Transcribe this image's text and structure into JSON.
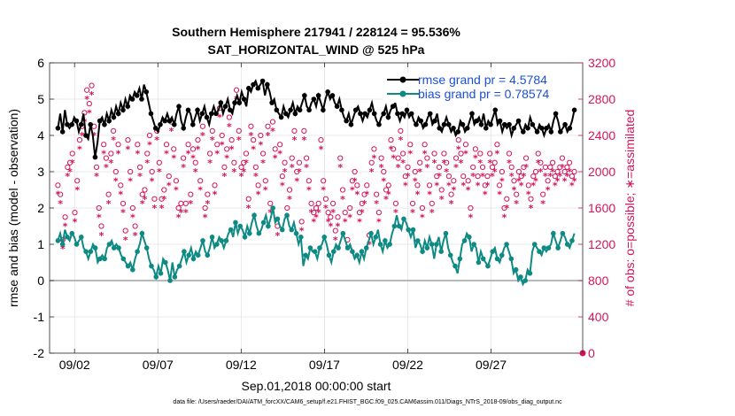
{
  "colors": {
    "rmse": "#000000",
    "bias": "#0e8a84",
    "obs": "#d6145a",
    "grid": "#e3e3e3",
    "legend_text": "#1a4fd8",
    "zero_line": "#a0a0a0"
  },
  "chart_data": {
    "type": "line",
    "title_line1": "Southern Hemisphere 217941 / 228124 = 95.536%",
    "title_line2": "SAT_HORIZONTAL_WIND @ 525 hPa",
    "xlabel": "Sep.01,2018 00:00:00 start",
    "ylabel_left": "rmse and bias (model - observation)",
    "ylabel_right": "# of obs: o=possible; ∗=assimilated",
    "xlim": [
      0.5,
      32.5
    ],
    "ylim_left": [
      -2,
      6
    ],
    "ylim_right": [
      0,
      3200
    ],
    "x_ticks": [
      2,
      7,
      12,
      17,
      22,
      27
    ],
    "x_tick_labels": [
      "09/02",
      "09/07",
      "09/12",
      "09/17",
      "09/22",
      "09/27"
    ],
    "y_left_ticks": [
      -2,
      -1,
      0,
      1,
      2,
      3,
      4,
      5,
      6
    ],
    "y_right_ticks": [
      0,
      400,
      800,
      1200,
      1600,
      2000,
      2400,
      2800,
      3200
    ],
    "legend": [
      "rmse grand pr = 4.5784",
      "bias grand pr = 0.78574"
    ],
    "series": [
      {
        "name": "rmse",
        "values": [
          4.2,
          4.6,
          4.1,
          4.7,
          4.3,
          4.2,
          4.3,
          4.5,
          4.4,
          4.1,
          4.3,
          4.6,
          4.0,
          3.9,
          4.3,
          4.0,
          3.4,
          3.8,
          4.4,
          4.5,
          4.3,
          4.6,
          4.4,
          4.7,
          4.5,
          4.8,
          4.6,
          4.9,
          4.7,
          5.0,
          4.8,
          5.1,
          5.0,
          5.2,
          5.1,
          5.3,
          5.0,
          5.4,
          5.2,
          4.9,
          4.6,
          4.4,
          4.2,
          4.1,
          4.3,
          4.5,
          4.4,
          4.6,
          4.4,
          4.5,
          4.3,
          4.6,
          4.8,
          4.4,
          4.2,
          4.5,
          4.7,
          4.6,
          4.3,
          4.5,
          4.7,
          4.4,
          4.6,
          4.8,
          4.5,
          4.3,
          4.6,
          4.8,
          4.6,
          4.7,
          4.9,
          4.6,
          4.8,
          5.0,
          4.7,
          4.6,
          4.9,
          5.1,
          4.9,
          5.2,
          5.0,
          4.8,
          5.3,
          5.2,
          5.4,
          5.5,
          5.3,
          5.4,
          5.5,
          5.1,
          5.4,
          5.2,
          4.9,
          5.0,
          4.7,
          4.6,
          4.5,
          4.8,
          4.6,
          4.5,
          4.7,
          4.9,
          4.6,
          4.8,
          4.7,
          4.9,
          5.1,
          4.8,
          4.7,
          4.9,
          5.0,
          4.8,
          5.1,
          4.9,
          4.7,
          5.0,
          5.2,
          5.0,
          5.1,
          4.9,
          4.8,
          5.0,
          4.7,
          4.5,
          4.4,
          4.6,
          4.3,
          4.5,
          4.7,
          4.8,
          4.6,
          4.4,
          4.6,
          4.5,
          4.7,
          4.9,
          4.6,
          4.4,
          4.3,
          4.5,
          4.6,
          4.8,
          4.5,
          4.7,
          4.8,
          4.9,
          4.6,
          4.4,
          4.6,
          4.5,
          4.7,
          4.5,
          4.6,
          4.4,
          4.3,
          4.5,
          4.4,
          4.2,
          4.3,
          4.5,
          4.6,
          4.3,
          4.4,
          4.6,
          4.2,
          4.1,
          4.3,
          4.5,
          4.3,
          4.1,
          4.2,
          4.0,
          4.1,
          4.4,
          4.3,
          4.1,
          4.2,
          4.4,
          4.6,
          4.3,
          4.4,
          4.5,
          4.3,
          4.6,
          4.2,
          4.4,
          4.3,
          4.5,
          4.7,
          4.3,
          4.4,
          4.1,
          4.3,
          4.2,
          4.3,
          4.0,
          4.2,
          4.3,
          4.4,
          4.2,
          4.1,
          4.3,
          4.2,
          4.5,
          4.3,
          4.2,
          4.1,
          4.3,
          4.2,
          4.0,
          4.2,
          4.3,
          4.1,
          4.4,
          4.6,
          4.4,
          4.1,
          4.2,
          4.3,
          4.1,
          4.2,
          4.4,
          4.7
        ]
      },
      {
        "name": "bias",
        "values": [
          1.1,
          1.3,
          1.0,
          1.4,
          1.2,
          1.1,
          1.3,
          1.2,
          1.0,
          1.1,
          1.2,
          0.9,
          0.8,
          0.6,
          0.8,
          1.0,
          0.9,
          0.5,
          0.6,
          0.7,
          0.6,
          0.9,
          1.0,
          1.1,
          0.9,
          1.0,
          0.9,
          0.7,
          0.6,
          0.5,
          0.4,
          0.5,
          0.3,
          0.6,
          0.8,
          1.0,
          1.3,
          1.1,
          0.9,
          0.6,
          0.4,
          0.3,
          0.1,
          0.4,
          0.2,
          0.6,
          0.5,
          0.3,
          0.0,
          0.5,
          0.1,
          0.3,
          0.4,
          0.6,
          0.8,
          0.5,
          0.7,
          0.9,
          0.6,
          0.8,
          0.7,
          0.9,
          1.1,
          0.8,
          0.7,
          0.9,
          1.2,
          0.9,
          1.0,
          1.2,
          1.1,
          0.9,
          1.1,
          1.3,
          1.4,
          1.2,
          1.6,
          1.3,
          1.5,
          1.4,
          1.2,
          1.5,
          1.3,
          1.6,
          1.8,
          1.5,
          1.3,
          1.4,
          1.6,
          1.8,
          1.5,
          1.7,
          2.0,
          1.6,
          1.7,
          1.5,
          1.4,
          1.7,
          1.8,
          1.5,
          1.4,
          1.6,
          1.3,
          1.0,
          1.2,
          0.4,
          0.7,
          0.6,
          0.9,
          0.8,
          0.8,
          0.6,
          0.9,
          1.0,
          1.2,
          1.0,
          0.7,
          0.5,
          0.8,
          1.0,
          0.9,
          1.1,
          1.3,
          1.1,
          0.9,
          1.0,
          0.8,
          0.6,
          0.7,
          0.5,
          0.8,
          0.6,
          0.9,
          1.1,
          1.3,
          1.0,
          1.2,
          1.4,
          1.0,
          0.8,
          1.1,
          0.9,
          1.0,
          1.3,
          1.5,
          1.8,
          1.5,
          1.4,
          1.7,
          1.6,
          1.4,
          1.2,
          1.4,
          0.9,
          1.1,
          1.0,
          0.8,
          1.1,
          0.9,
          1.2,
          1.0,
          0.6,
          1.0,
          1.2,
          0.8,
          1.1,
          1.3,
          0.9,
          0.7,
          0.5,
          0.4,
          0.2,
          0.6,
          1.0,
          1.1,
          1.3,
          1.2,
          0.8,
          1.0,
          0.9,
          0.5,
          0.8,
          0.6,
          0.5,
          0.4,
          0.6,
          0.8,
          0.9,
          0.6,
          0.5,
          0.7,
          0.9,
          1.0,
          0.8,
          0.6,
          0.2,
          0.3,
          0.0,
          0.1,
          -0.1,
          0.0,
          0.3,
          0.2,
          0.8,
          1.0,
          0.9,
          0.8,
          0.7,
          0.9,
          0.8,
          0.9,
          1.0,
          1.3,
          1.1,
          0.9,
          1.1,
          1.3,
          1.2,
          1.0,
          0.9,
          1.1,
          1.3
        ]
      },
      {
        "name": "obs_possible",
        "values": [
          1850,
          1750,
          1250,
          1500,
          2050,
          2100,
          2200,
          1550,
          1900,
          2350,
          2500,
          2650,
          2900,
          2750,
          2950,
          2500,
          2050,
          1600,
          1400,
          2300,
          2150,
          1750,
          2200,
          2450,
          2000,
          2300,
          1850,
          1650,
          1350,
          2350,
          2000,
          1600,
          1400,
          2300,
          2050,
          1750,
          1800,
          2200,
          2400,
          2000,
          1700,
          2450,
          2100,
          1700,
          1800,
          2300,
          1950,
          2550,
          2250,
          1900,
          1600,
          1650,
          2150,
          1650,
          2300,
          1750,
          2250,
          2100,
          2350,
          1900,
          2500,
          1600,
          1750,
          2200,
          2450,
          1850,
          2300,
          2700,
          2400,
          2050,
          2250,
          2600,
          2350,
          2100,
          2900,
          2450,
          2050,
          2100,
          2200,
          1700,
          2500,
          2350,
          2050,
          1850,
          2400,
          2200,
          1900,
          2500,
          1650,
          2550,
          2250,
          1400,
          2300,
          1950,
          2100,
          1600,
          1800,
          2150,
          2450,
          2000,
          2100,
          1450,
          2450,
          2150,
          1900,
          1650,
          1550,
          1600,
          1650,
          2350,
          1900,
          1700,
          1550,
          1500,
          1650,
          1350,
          1500,
          2150,
          1800,
          1550,
          1250,
          1600,
          1900,
          2000,
          1850,
          1550,
          1650,
          1750,
          1850,
          1300,
          2100,
          2250,
          1750,
          1550,
          2150,
          2000,
          1800,
          1850,
          2350,
          2250,
          1650,
          2150,
          2450,
          2200,
          1950,
          2050,
          2300,
          1650,
          2000,
          1850,
          2100,
          1600,
          2300,
          2150,
          1850,
          1650,
          2200,
          1950,
          2050,
          1800,
          2200,
          2100,
          1950,
          1750,
          1900,
          2150,
          2350,
          2200,
          1950,
          2300,
          1900,
          1600,
          2050,
          2250,
          1950,
          2200,
          2050,
          1850,
          1950,
          2200,
          2050,
          2100,
          2300,
          1850,
          2000,
          1600,
          1700,
          2200,
          2050,
          1900,
          1750,
          2000,
          1950,
          2050,
          2150,
          1850,
          1700,
          1950,
          2000,
          2200,
          2100,
          1750,
          2050,
          1900,
          2050,
          2100,
          1950,
          2000,
          2050,
          2150,
          2000,
          2050,
          2100,
          1950,
          2000
        ]
      },
      {
        "name": "obs_assimilated",
        "values": [
          1750,
          1650,
          1150,
          1400,
          1950,
          2000,
          2100,
          1450,
          1800,
          2250,
          2400,
          2550,
          2800,
          2650,
          2850,
          2400,
          1950,
          1500,
          1300,
          2200,
          2050,
          1650,
          2100,
          2350,
          1900,
          2200,
          1750,
          1550,
          1250,
          2250,
          1900,
          1500,
          1300,
          2200,
          1950,
          1650,
          1700,
          2100,
          2300,
          1900,
          1600,
          2350,
          2000,
          1600,
          1700,
          2200,
          1850,
          2450,
          2150,
          1800,
          1500,
          1550,
          2050,
          1550,
          2200,
          1650,
          2150,
          2000,
          2250,
          1800,
          2400,
          1500,
          1650,
          2100,
          2350,
          1750,
          2200,
          2600,
          2300,
          1950,
          2150,
          2500,
          2250,
          2000,
          2800,
          2350,
          1950,
          2000,
          2100,
          1600,
          2400,
          2250,
          1950,
          1750,
          2300,
          2100,
          1800,
          2400,
          1550,
          2450,
          2150,
          1300,
          2200,
          1850,
          2000,
          1500,
          1700,
          2050,
          2350,
          1900,
          2000,
          1350,
          2350,
          2050,
          1800,
          1550,
          1450,
          1500,
          1550,
          2250,
          1800,
          1600,
          1450,
          1400,
          1550,
          1250,
          1400,
          2050,
          1700,
          1450,
          1150,
          1500,
          1800,
          1900,
          1750,
          1450,
          1550,
          1650,
          1750,
          1200,
          2000,
          2150,
          1650,
          1450,
          2050,
          1900,
          1700,
          1750,
          2250,
          2150,
          1550,
          2050,
          2350,
          2100,
          1850,
          1950,
          2200,
          1550,
          1900,
          1750,
          2000,
          1500,
          2200,
          2050,
          1750,
          1550,
          2100,
          1850,
          1950,
          1700,
          2100,
          2000,
          1850,
          1650,
          1800,
          2050,
          2250,
          2100,
          1850,
          2200,
          1800,
          1500,
          1950,
          2150,
          1850,
          2100,
          1950,
          1750,
          1850,
          2100,
          1950,
          2000,
          2200,
          1750,
          1900,
          1500,
          1600,
          2100,
          1950,
          1800,
          1650,
          1900,
          1850,
          1950,
          2050,
          1750,
          1600,
          1850,
          1900,
          2100,
          2000,
          1650,
          1950,
          1800,
          1950,
          2000,
          1850,
          1900,
          1950,
          2050,
          1900,
          1950,
          2000,
          1850,
          1900
        ]
      }
    ]
  },
  "footer_text": "data file: /Users/raeder/DAI/ATM_forcXX/CAM6_setup/f.e21.FHIST_BGC.f09_025.CAM6assim.011/Diags_NTrS_2018-09/obs_diag_output.nc"
}
